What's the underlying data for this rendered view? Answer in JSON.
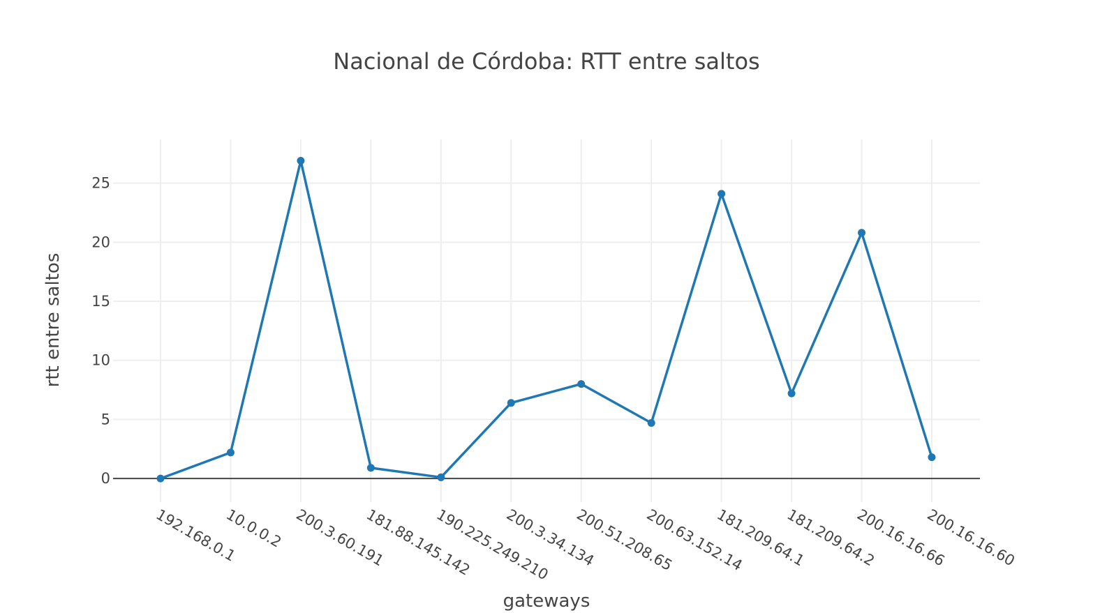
{
  "chart_data": {
    "type": "line",
    "title": "Nacional de Córdoba: RTT entre saltos",
    "xlabel": "gateways",
    "ylabel": "rtt entre saltos",
    "categories": [
      "192.168.0.1",
      "10.0.0.2",
      "200.3.60.191",
      "181.88.145.142",
      "190.225.249.210",
      "200.3.34.134",
      "200.51.208.65",
      "200.63.152.14",
      "181.209.64.1",
      "181.209.64.2",
      "200.16.16.66",
      "200.16.16.60"
    ],
    "series": [
      {
        "values": [
          0,
          2.2,
          26.9,
          0.9,
          0.1,
          6.4,
          8.0,
          4.7,
          24.1,
          7.2,
          20.8,
          1.8
        ],
        "color": "#1f77b4"
      }
    ],
    "ylim": [
      -2,
      28.7
    ],
    "yticks": [
      0,
      5,
      10,
      15,
      20,
      25
    ],
    "grid": true,
    "legend": "none"
  }
}
